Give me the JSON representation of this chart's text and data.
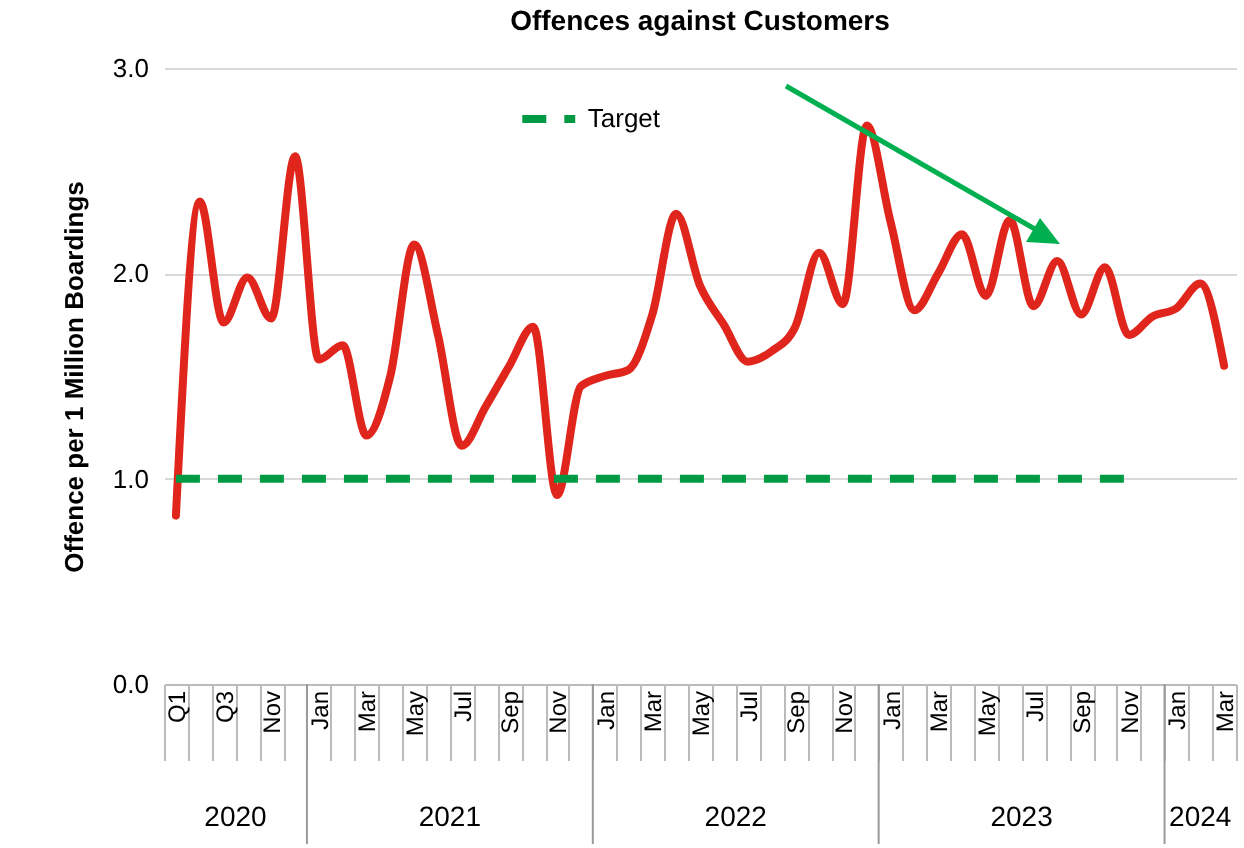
{
  "chart_data": {
    "type": "line",
    "title": "Offences against Customers",
    "ylabel": "Offence per 1 Million Boardings",
    "categories": [
      "Q1",
      null,
      "Q3",
      null,
      "Nov",
      null,
      "Jan",
      null,
      "Mar",
      null,
      "May",
      null,
      "Jul",
      null,
      "Sep",
      null,
      "Nov",
      null,
      "Jan",
      null,
      "Mar",
      null,
      "May",
      null,
      "Jul",
      null,
      "Sep",
      null,
      "Nov",
      null,
      "Jan",
      null,
      "Mar",
      null,
      "May",
      null,
      "Jul",
      null,
      "Sep",
      null,
      "Nov",
      null,
      "Jan",
      null,
      "Mar"
    ],
    "series": [
      {
        "color": "#e0261c",
        "values": [
          0.82,
          2.35,
          1.76,
          1.98,
          1.78,
          2.57,
          1.58,
          1.65,
          1.21,
          1.5,
          2.14,
          1.7,
          1.16,
          1.35,
          1.55,
          1.74,
          0.92,
          1.45,
          1.5,
          1.53,
          1.8,
          2.29,
          1.94,
          1.75,
          1.57,
          1.62,
          1.74,
          2.1,
          1.85,
          2.72,
          2.25,
          1.82,
          2.0,
          2.19,
          1.89,
          2.26,
          1.84,
          2.06,
          1.8,
          2.03,
          1.7,
          1.79,
          1.83,
          1.95,
          1.55
        ]
      },
      {
        "name": "Target",
        "color": "#009a44",
        "line_style": "dashed",
        "values": [
          1,
          1,
          1,
          1,
          1,
          1,
          1,
          1,
          1,
          1,
          1,
          1,
          1,
          1,
          1,
          1,
          1,
          1,
          1,
          1,
          1,
          1,
          1,
          1,
          1,
          1,
          1,
          1,
          1,
          1,
          1,
          1,
          1,
          1,
          1,
          1,
          1,
          1,
          1,
          1,
          1,
          null,
          null,
          null,
          null
        ]
      }
    ],
    "ylim": [
      0,
      3
    ],
    "yticks": [
      {
        "value": 0,
        "label": "0.0"
      },
      {
        "value": 1,
        "label": "1.0"
      },
      {
        "value": 2,
        "label": "2.0"
      },
      {
        "value": 3,
        "label": "3.0"
      }
    ],
    "grid": "y",
    "legend": "top",
    "marker": "none",
    "annotations": [
      "2020",
      "2021",
      "2022",
      "2023",
      "2024"
    ]
  }
}
